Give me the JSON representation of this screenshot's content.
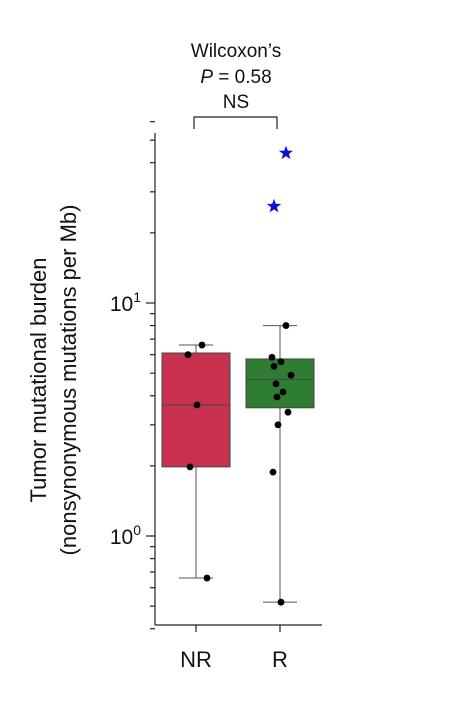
{
  "chart_data": {
    "type": "box",
    "annotation": {
      "test": "Wilcoxon’s",
      "p_label": "P",
      "p_value": "= 0.58",
      "significance": "NS"
    },
    "ylabel_line1": "Tumor mutational burden",
    "ylabel_line2": "(nonsynonymous mutations per Mb)",
    "yscale": "log",
    "ylim": [
      0.4,
      60
    ],
    "y_tick_labels": [
      {
        "base": "10",
        "exp": "0",
        "value": 1
      },
      {
        "base": "10",
        "exp": "1",
        "value": 10
      }
    ],
    "categories": [
      "NR",
      "R"
    ],
    "groups": [
      {
        "label": "NR",
        "color": "#c8324f",
        "box": {
          "whisker_low": 0.66,
          "q1": 1.98,
          "median": 3.65,
          "q3": 6.1,
          "whisker_high": 6.6
        },
        "points": [
          6.6,
          6.0,
          3.65,
          1.98,
          0.66
        ],
        "outliers": []
      },
      {
        "label": "R",
        "color": "#2e7d32",
        "box": {
          "whisker_low": 0.52,
          "q1": 3.55,
          "median": 4.7,
          "q3": 5.75,
          "whisker_high": 8.0
        },
        "points": [
          8.0,
          5.85,
          5.6,
          5.35,
          4.9,
          4.5,
          4.15,
          3.95,
          3.4,
          3.0,
          1.88,
          0.52
        ],
        "outliers": [
          44,
          26
        ]
      }
    ],
    "outlier_color": "#1010dd",
    "point_color": "#000000"
  }
}
